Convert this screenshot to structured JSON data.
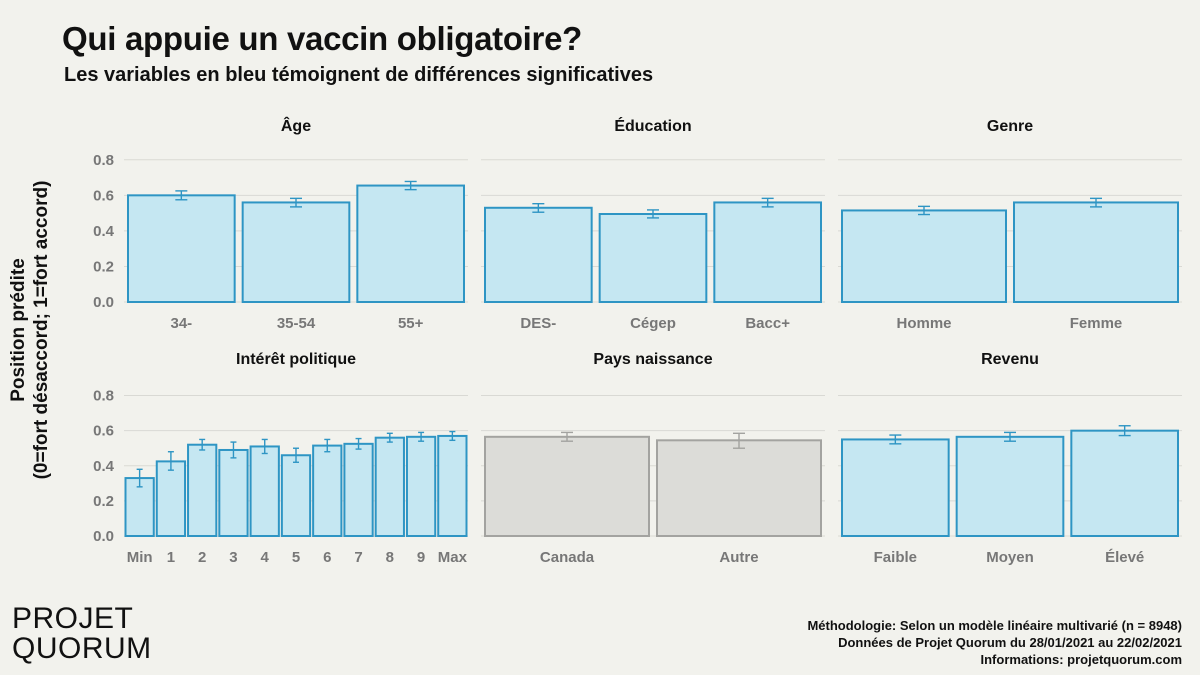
{
  "title": "Qui appuie un vaccin obligatoire?",
  "subtitle": "Les variables en bleu témoignent de différences significatives",
  "ylabel_line1": "Position prédite",
  "ylabel_line2": "(0=fort désaccord; 1=fort accord)",
  "logo_line1": "PROJET",
  "logo_line2": "QUORUM",
  "notes": [
    "Méthodologie: Selon un modèle linéaire multivarié (n = 8948)",
    "Données de Projet Quorum du 28/01/2021 au 22/02/2021",
    "Informations: projetquorum.com"
  ],
  "colors": {
    "significant_fill": "#c5e7f2",
    "significant_stroke": "#2e95c4",
    "nonsig_fill": "#dcdcd8",
    "nonsig_stroke": "#a3a3a0",
    "grid": "#d9d9d4",
    "tick_label": "#777777",
    "background": "#f2f2ed"
  },
  "chart_data": [
    {
      "type": "bar",
      "title": "Âge",
      "significant": true,
      "categories": [
        "34-",
        "35-54",
        "55+"
      ],
      "values": [
        0.6,
        0.56,
        0.655
      ],
      "error_low": [
        0.575,
        0.535,
        0.632
      ],
      "error_high": [
        0.625,
        0.583,
        0.678
      ],
      "ylim": [
        0,
        0.9
      ],
      "yticks": [
        "0.0",
        "0.2",
        "0.4",
        "0.6",
        "0.8"
      ],
      "grid": true
    },
    {
      "type": "bar",
      "title": "Éducation",
      "significant": true,
      "categories": [
        "DES-",
        "Cégep",
        "Bacc+"
      ],
      "values": [
        0.53,
        0.495,
        0.56
      ],
      "error_low": [
        0.505,
        0.473,
        0.535
      ],
      "error_high": [
        0.553,
        0.518,
        0.583
      ],
      "ylim": [
        0,
        0.9
      ],
      "yticks": [
        "0.0",
        "0.2",
        "0.4",
        "0.6",
        "0.8"
      ],
      "grid": true
    },
    {
      "type": "bar",
      "title": "Genre",
      "significant": true,
      "categories": [
        "Homme",
        "Femme"
      ],
      "values": [
        0.515,
        0.56
      ],
      "error_low": [
        0.492,
        0.535
      ],
      "error_high": [
        0.538,
        0.583
      ],
      "ylim": [
        0,
        0.9
      ],
      "yticks": [
        "0.0",
        "0.2",
        "0.4",
        "0.6",
        "0.8"
      ],
      "grid": true
    },
    {
      "type": "bar",
      "title": "Intérêt politique",
      "significant": true,
      "categories": [
        "Min",
        "1",
        "2",
        "3",
        "4",
        "5",
        "6",
        "7",
        "8",
        "9",
        "Max"
      ],
      "values": [
        0.33,
        0.425,
        0.52,
        0.49,
        0.51,
        0.46,
        0.515,
        0.525,
        0.56,
        0.565,
        0.57
      ],
      "error_low": [
        0.28,
        0.375,
        0.49,
        0.445,
        0.47,
        0.42,
        0.48,
        0.495,
        0.535,
        0.54,
        0.545
      ],
      "error_high": [
        0.38,
        0.48,
        0.55,
        0.535,
        0.55,
        0.5,
        0.55,
        0.555,
        0.585,
        0.59,
        0.595
      ],
      "ylim": [
        0,
        0.9
      ],
      "yticks": [
        "0.0",
        "0.2",
        "0.4",
        "0.6",
        "0.8"
      ],
      "grid": true
    },
    {
      "type": "bar",
      "title": "Pays naissance",
      "significant": false,
      "categories": [
        "Canada",
        "Autre"
      ],
      "values": [
        0.565,
        0.545
      ],
      "error_low": [
        0.54,
        0.5
      ],
      "error_high": [
        0.59,
        0.585
      ],
      "ylim": [
        0,
        0.9
      ],
      "yticks": [
        "0.0",
        "0.2",
        "0.4",
        "0.6",
        "0.8"
      ],
      "grid": true
    },
    {
      "type": "bar",
      "title": "Revenu",
      "significant": true,
      "categories": [
        "Faible",
        "Moyen",
        "Élevé"
      ],
      "values": [
        0.55,
        0.565,
        0.6
      ],
      "error_low": [
        0.525,
        0.54,
        0.572
      ],
      "error_high": [
        0.575,
        0.59,
        0.628
      ],
      "ylim": [
        0,
        0.9
      ],
      "yticks": [
        "0.0",
        "0.2",
        "0.4",
        "0.6",
        "0.8"
      ],
      "grid": true
    }
  ]
}
